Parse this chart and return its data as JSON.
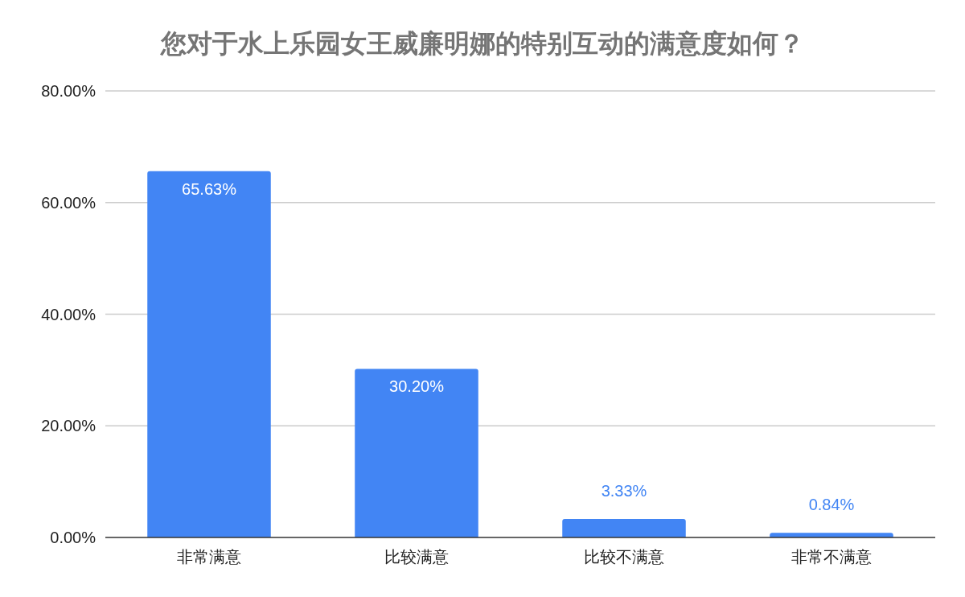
{
  "chart_data": {
    "type": "bar",
    "title": "您对于水上乐园女王威廉明娜的特别互动的满意度如何？",
    "categories": [
      "非常满意",
      "比较满意",
      "比较不满意",
      "非常不满意"
    ],
    "values": [
      65.63,
      30.2,
      3.33,
      0.84
    ],
    "value_labels": [
      "65.63%",
      "30.20%",
      "3.33%",
      "0.84%"
    ],
    "color": "#4285f4",
    "ylim": [
      0,
      80
    ],
    "yticks": [
      {
        "value": 0,
        "label": "0.00%"
      },
      {
        "value": 20,
        "label": "20.00%"
      },
      {
        "value": 40,
        "label": "40.00%"
      },
      {
        "value": 60,
        "label": "60.00%"
      },
      {
        "value": 80,
        "label": "80.00%"
      }
    ],
    "grid": "y"
  }
}
